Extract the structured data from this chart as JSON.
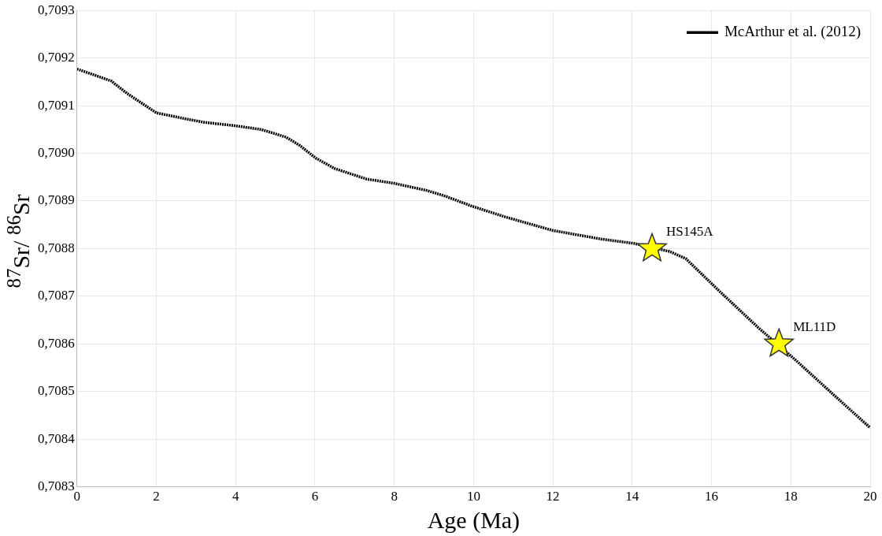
{
  "chart_data": {
    "type": "line",
    "xlabel": "Age (Ma)",
    "ylabel": "$^{87}$Sr/ $^{86}$Sr",
    "xlim": [
      0,
      20
    ],
    "xticks": [
      0,
      2,
      4,
      6,
      8,
      10,
      12,
      14,
      16,
      18,
      20
    ],
    "ylim": [
      0.7083,
      0.7093
    ],
    "yticks": [
      {
        "value": 0.7083,
        "label": "0,7083"
      },
      {
        "value": 0.7084,
        "label": "0,7084"
      },
      {
        "value": 0.7085,
        "label": "0,7085"
      },
      {
        "value": 0.7086,
        "label": "0,7086"
      },
      {
        "value": 0.7087,
        "label": "0,7087"
      },
      {
        "value": 0.7088,
        "label": "0,7088"
      },
      {
        "value": 0.7089,
        "label": "0,7089"
      },
      {
        "value": 0.709,
        "label": "0,7090"
      },
      {
        "value": 0.7091,
        "label": "0,7091"
      },
      {
        "value": 0.7092,
        "label": "0,7092"
      },
      {
        "value": 0.7093,
        "label": "0,7093"
      }
    ],
    "grid": true,
    "legend": "top right",
    "series": [
      {
        "name": "McArthur et al. (2012)",
        "color": "#000000",
        "line_style": "dotted",
        "marker": "none",
        "x": [
          0,
          0.86,
          1.26,
          2.0,
          2.76,
          3.22,
          3.98,
          4.65,
          5.27,
          5.61,
          6.02,
          6.5,
          7.3,
          8.0,
          8.82,
          9.29,
          9.96,
          10.78,
          12.0,
          13.22,
          14.04,
          14.94,
          15.35,
          16.22,
          17.18,
          18.12,
          19.08,
          20
        ],
        "values": [
          0.709177,
          0.709152,
          0.709126,
          0.709085,
          0.709072,
          0.709065,
          0.709058,
          0.70905,
          0.709034,
          0.709017,
          0.70899,
          0.708968,
          0.708946,
          0.708937,
          0.708922,
          0.70891,
          0.708889,
          0.708867,
          0.708838,
          0.70882,
          0.708811,
          0.708794,
          0.708779,
          0.708709,
          0.708634,
          0.708566,
          0.708493,
          0.708424
        ]
      },
      {
        "name": "HS145A",
        "type": "scatter",
        "color": "#ffff00",
        "marker": "star",
        "x": [
          14.5
        ],
        "values": [
          0.7088
        ]
      },
      {
        "name": "ML11D",
        "type": "scatter",
        "color": "#ffff00",
        "marker": "star",
        "x": [
          17.7
        ],
        "values": [
          0.7086
        ]
      }
    ]
  }
}
